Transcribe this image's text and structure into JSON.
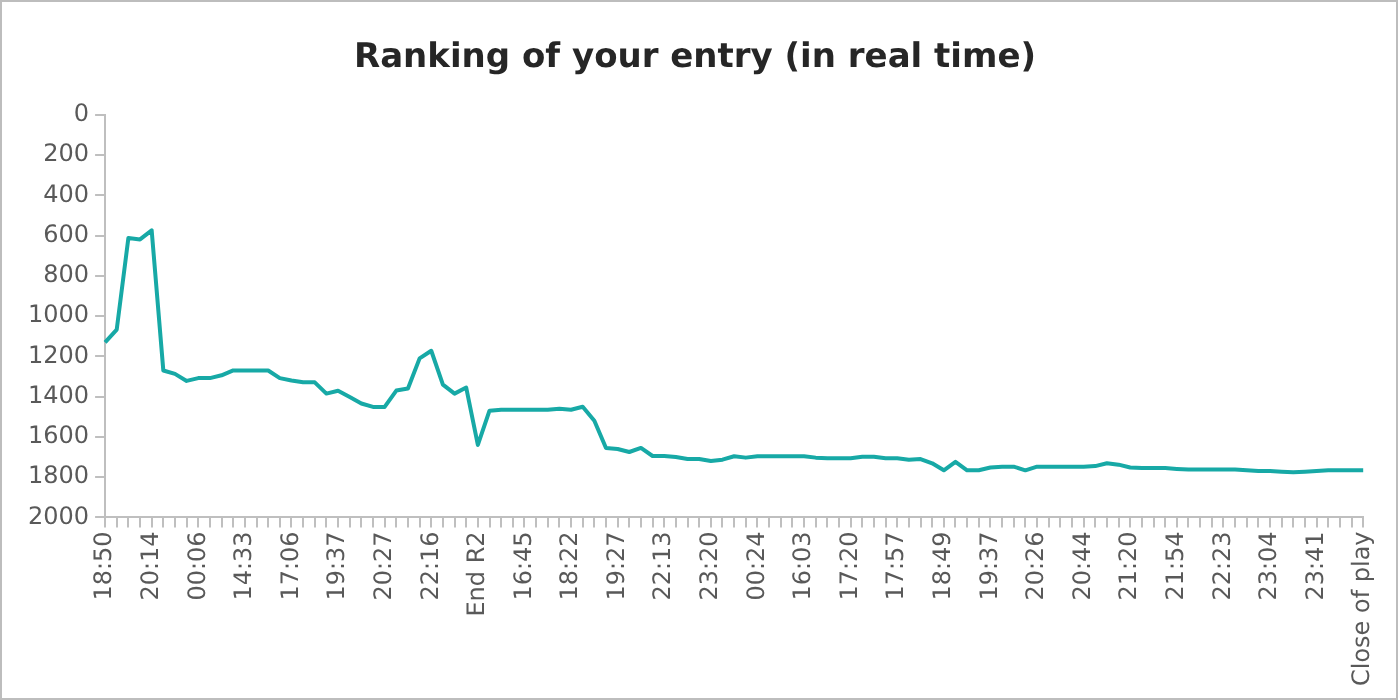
{
  "chart_data": {
    "type": "line",
    "title": "Ranking of your entry (in real time)",
    "categories": [
      "18:50",
      null,
      null,
      null,
      "20:14",
      null,
      null,
      null,
      "00:06",
      null,
      null,
      null,
      "14:33",
      null,
      null,
      null,
      "17:06",
      null,
      null,
      null,
      "19:37",
      null,
      null,
      null,
      "20:27",
      null,
      null,
      null,
      "22:16",
      null,
      null,
      null,
      "End R2",
      null,
      null,
      null,
      "16:45",
      null,
      null,
      null,
      "18:22",
      null,
      null,
      null,
      "19:27",
      null,
      null,
      null,
      "22:13",
      null,
      null,
      null,
      "23:20",
      null,
      null,
      null,
      "00:24",
      null,
      null,
      null,
      "16:03",
      null,
      null,
      null,
      "17:20",
      null,
      null,
      null,
      "17:57",
      null,
      null,
      null,
      "18:49",
      null,
      null,
      null,
      "19:37",
      null,
      null,
      null,
      "20:26",
      null,
      null,
      null,
      "20:44",
      null,
      null,
      null,
      "21:20",
      null,
      null,
      null,
      "21:54",
      null,
      null,
      null,
      "22:23",
      null,
      null,
      null,
      "23:04",
      null,
      null,
      null,
      "23:41",
      null,
      null,
      null,
      "Close of play"
    ],
    "series": [
      {
        "color": "#17a9a6",
        "values": [
          1130,
          1067,
          612,
          619,
          574,
          1270,
          1287,
          1322,
          1308,
          1308,
          1294,
          1270,
          1270,
          1270,
          1270,
          1308,
          1320,
          1329,
          1329,
          1385,
          1371,
          1402,
          1434,
          1451,
          1451,
          1370,
          1360,
          1210,
          1172,
          1340,
          1385,
          1355,
          1640,
          1470,
          1465,
          1465,
          1465,
          1465,
          1465,
          1460,
          1465,
          1450,
          1520,
          1655,
          1660,
          1675,
          1655,
          1695,
          1695,
          1700,
          1710,
          1710,
          1720,
          1713,
          1696,
          1703,
          1696,
          1696,
          1696,
          1696,
          1696,
          1703,
          1706,
          1706,
          1706,
          1699,
          1699,
          1706,
          1706,
          1713,
          1710,
          1731,
          1766,
          1724,
          1766,
          1766,
          1752,
          1748,
          1748,
          1766,
          1748,
          1748,
          1748,
          1748,
          1748,
          1745,
          1731,
          1738,
          1752,
          1755,
          1755,
          1755,
          1759,
          1762,
          1762,
          1762,
          1762,
          1762,
          1766,
          1769,
          1769,
          1773,
          1776,
          1773,
          1769,
          1766,
          1766,
          1766,
          1766
        ]
      }
    ],
    "ylim": [
      2000,
      0
    ],
    "yticks": [
      0,
      200,
      400,
      600,
      800,
      1000,
      1200,
      1400,
      1600,
      1800,
      2000
    ],
    "grid": false,
    "legend": false,
    "marker": "none",
    "line_style": "solid"
  }
}
